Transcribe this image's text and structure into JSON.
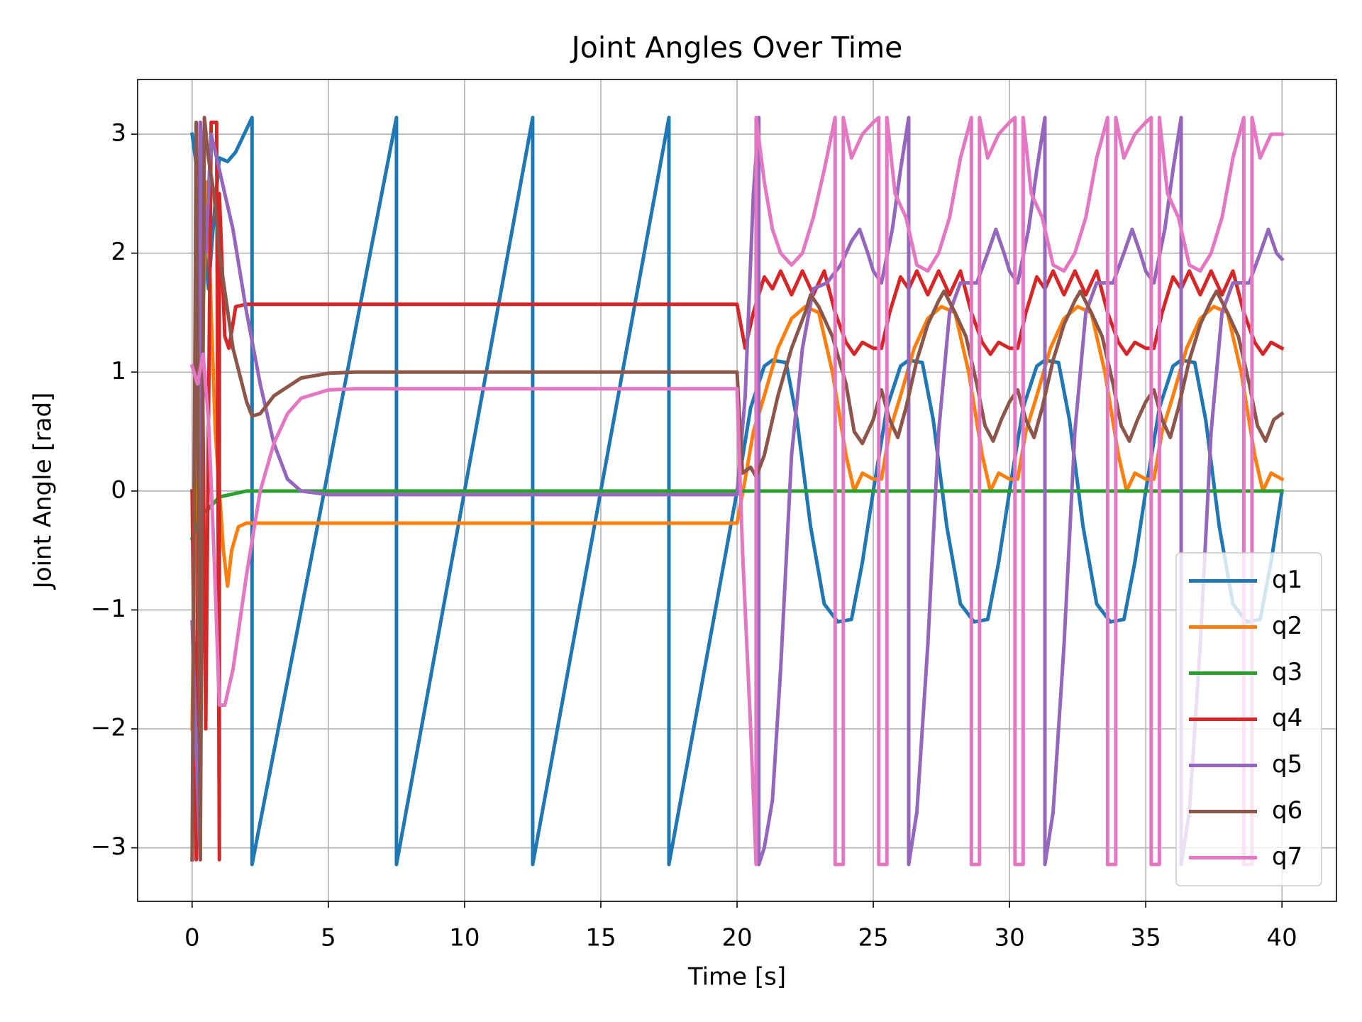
{
  "chart_data": {
    "type": "line",
    "title": "Joint Angles Over Time",
    "x_label": "Time [s]",
    "y_label": "Joint Angle [rad]",
    "xlim": [
      -2,
      42
    ],
    "ylim": [
      -3.45,
      3.46
    ],
    "xticks": [
      0,
      5,
      10,
      15,
      20,
      25,
      30,
      35,
      40
    ],
    "yticks": [
      {
        "value": -3,
        "label": "−3"
      },
      {
        "value": -2,
        "label": "−2"
      },
      {
        "value": -1,
        "label": "−1"
      },
      0,
      1,
      2,
      3
    ],
    "grid": true,
    "legend": "lower right",
    "series": [
      {
        "name": "q1",
        "color": "#1f77b4",
        "x": [
          0,
          0.3,
          0.6,
          0.8,
          1,
          1.3,
          1.6,
          2.2,
          2.2,
          7.5,
          7.5,
          12.5,
          12.5,
          17.5,
          17.5,
          20,
          20.5,
          21,
          21.3,
          21.8,
          22.2,
          22.7,
          23.2,
          23.7,
          24.2,
          24.6,
          25,
          25.5,
          26,
          26.3,
          26.8,
          27.2,
          27.7,
          28.2,
          28.7,
          29.2,
          29.6,
          30,
          30.5,
          31,
          31.3,
          31.8,
          32.2,
          32.7,
          33.2,
          33.7,
          34.2,
          34.6,
          35,
          35.5,
          36,
          36.3,
          36.8,
          37.2,
          37.7,
          38.2,
          38.7,
          39.2,
          39.6,
          40
        ],
        "values": [
          3,
          2.5,
          1.7,
          2.3,
          2.8,
          2.77,
          2.85,
          3.14,
          -3.14,
          3.14,
          -3.14,
          3.14,
          -3.14,
          3.14,
          -3.14,
          0,
          0.7,
          1.05,
          1.1,
          1.08,
          0.6,
          -0.3,
          -0.95,
          -1.1,
          -1.08,
          -0.6,
          0,
          0.7,
          1.05,
          1.1,
          1.08,
          0.6,
          -0.3,
          -0.95,
          -1.1,
          -1.08,
          -0.6,
          0,
          0.7,
          1.05,
          1.1,
          1.08,
          0.6,
          -0.3,
          -0.95,
          -1.1,
          -1.08,
          -0.6,
          0,
          0.7,
          1.05,
          1.1,
          1.08,
          0.6,
          -0.3,
          -0.95,
          -1.1,
          -1.08,
          -0.6,
          0
        ]
      },
      {
        "name": "q2",
        "color": "#ff7f0e",
        "x": [
          0,
          0.15,
          0.3,
          0.4,
          0.55,
          0.7,
          0.85,
          1,
          1.15,
          1.3,
          1.45,
          1.7,
          2,
          20,
          20.3,
          20.6,
          21,
          21.5,
          22,
          22.5,
          23,
          23.5,
          24,
          24.3,
          24.6,
          25,
          25.3,
          25.6,
          26,
          26.5,
          27,
          27.5,
          28,
          28.5,
          29,
          29.3,
          29.6,
          30,
          30.3,
          30.6,
          31,
          31.5,
          32,
          32.5,
          33,
          33.5,
          34,
          34.3,
          34.6,
          35,
          35.3,
          35.6,
          36,
          36.5,
          37,
          37.5,
          38,
          38.5,
          39,
          39.3,
          39.6,
          40
        ],
        "values": [
          -2,
          0.5,
          3.1,
          1.5,
          2.6,
          1.5,
          0.5,
          0,
          -0.5,
          -0.8,
          -0.5,
          -0.3,
          -0.27,
          -0.27,
          0.1,
          0.5,
          0.8,
          1.2,
          1.45,
          1.55,
          1.5,
          1,
          0.3,
          0,
          0.15,
          0.1,
          0.1,
          0.5,
          0.8,
          1.2,
          1.45,
          1.55,
          1.5,
          1,
          0.3,
          0,
          0.15,
          0.1,
          0.1,
          0.5,
          0.8,
          1.2,
          1.45,
          1.55,
          1.5,
          1,
          0.3,
          0,
          0.15,
          0.1,
          0.1,
          0.5,
          0.8,
          1.2,
          1.45,
          1.55,
          1.5,
          1,
          0.3,
          0,
          0.15,
          0.1
        ]
      },
      {
        "name": "q3",
        "color": "#2ca02c",
        "x": [
          0,
          0.3,
          0.6,
          1,
          2,
          40
        ],
        "values": [
          -0.4,
          -0.2,
          -0.15,
          -0.05,
          0,
          0
        ]
      },
      {
        "name": "q4",
        "color": "#d62728",
        "x": [
          0,
          0.15,
          0.3,
          0.5,
          0.7,
          0.9,
          1,
          1,
          1.2,
          1.35,
          1.6,
          2,
          20,
          20.3,
          20.6,
          21,
          21.3,
          21.6,
          22,
          22.4,
          22.8,
          23.2,
          23.6,
          24,
          24.3,
          24.6,
          25,
          25.3,
          25.6,
          26,
          26.3,
          26.6,
          27,
          27.4,
          27.8,
          28.2,
          28.6,
          29,
          29.3,
          29.6,
          30,
          30.3,
          30.6,
          31,
          31.3,
          31.6,
          32,
          32.4,
          32.8,
          33.2,
          33.6,
          34,
          34.3,
          34.6,
          35,
          35.3,
          35.6,
          36,
          36.3,
          36.6,
          37,
          37.4,
          37.8,
          38.2,
          38.6,
          39,
          39.3,
          39.6,
          40
        ],
        "values": [
          0,
          -3.1,
          3.1,
          -2,
          3.1,
          3.1,
          -3.1,
          2.5,
          1.3,
          1.2,
          1.55,
          1.57,
          1.57,
          1.2,
          1.5,
          1.8,
          1.7,
          1.85,
          1.65,
          1.85,
          1.65,
          1.85,
          1.5,
          1.25,
          1.15,
          1.25,
          1.2,
          1.2,
          1.5,
          1.8,
          1.7,
          1.85,
          1.65,
          1.85,
          1.65,
          1.85,
          1.5,
          1.25,
          1.15,
          1.25,
          1.2,
          1.2,
          1.5,
          1.8,
          1.7,
          1.85,
          1.65,
          1.85,
          1.65,
          1.85,
          1.5,
          1.25,
          1.15,
          1.25,
          1.2,
          1.2,
          1.5,
          1.8,
          1.7,
          1.85,
          1.65,
          1.85,
          1.65,
          1.85,
          1.5,
          1.25,
          1.15,
          1.25,
          1.2
        ]
      },
      {
        "name": "q5",
        "color": "#9467bd",
        "x": [
          0,
          0.2,
          0.3,
          0.3,
          0.5,
          0.7,
          0.9,
          1.2,
          1.5,
          2,
          2.5,
          3,
          3.5,
          4,
          5,
          20,
          20.3,
          20.6,
          20.8,
          20.8,
          21,
          21.3,
          21.6,
          22,
          22.4,
          22.8,
          23.3,
          23.8,
          24.2,
          24.5,
          24.8,
          25,
          25.3,
          25.7,
          26,
          26.3,
          26.3,
          26.6,
          27,
          27.4,
          27.8,
          28.2,
          28.8,
          29.2,
          29.5,
          29.8,
          30,
          30.3,
          30.7,
          31,
          31.3,
          31.3,
          31.6,
          32,
          32.4,
          32.8,
          33.2,
          33.8,
          34.2,
          34.5,
          34.8,
          35,
          35.3,
          35.7,
          36,
          36.3,
          36.3,
          36.6,
          37,
          37.4,
          37.8,
          38.2,
          38.8,
          39.2,
          39.5,
          39.8,
          40
        ],
        "values": [
          -1.1,
          -2.5,
          -3.1,
          3.1,
          2,
          3,
          2.8,
          2.5,
          2.2,
          1.5,
          0.9,
          0.4,
          0.1,
          0,
          -0.03,
          -0.03,
          0.8,
          2.5,
          3.14,
          -3.14,
          -3,
          -2.6,
          -1.5,
          0.3,
          1.2,
          1.7,
          1.75,
          1.9,
          2.1,
          2.2,
          2,
          1.85,
          1.75,
          2.2,
          2.7,
          3.14,
          -3.14,
          -2.7,
          -1.3,
          0.5,
          1.5,
          1.75,
          1.75,
          2,
          2.2,
          2,
          1.85,
          1.75,
          2.2,
          2.7,
          3.14,
          -3.14,
          -2.7,
          -1.3,
          0.5,
          1.5,
          1.75,
          1.75,
          2,
          2.2,
          2,
          1.85,
          1.75,
          2.2,
          2.7,
          3.14,
          -3.14,
          -2.7,
          -1.3,
          0.5,
          1.5,
          1.75,
          1.75,
          2,
          2.2,
          2,
          1.95
        ]
      },
      {
        "name": "q6",
        "color": "#8c564b",
        "x": [
          0,
          0.15,
          0.3,
          0.45,
          0.6,
          0.8,
          1,
          1.5,
          2,
          2.2,
          2.5,
          3,
          4,
          5,
          6,
          20,
          20.2,
          20.5,
          20.7,
          21,
          21.5,
          22,
          22.5,
          22.7,
          23,
          23.5,
          24,
          24.3,
          24.6,
          25,
          25.3,
          25.6,
          25.9,
          26.2,
          26.6,
          27,
          27.4,
          27.6,
          28,
          28.4,
          28.8,
          29.1,
          29.4,
          29.7,
          30,
          30.3,
          30.6,
          30.9,
          31.2,
          31.6,
          32,
          32.4,
          32.6,
          33,
          33.4,
          33.8,
          34.1,
          34.4,
          34.7,
          35,
          35.3,
          35.6,
          35.9,
          36.2,
          36.6,
          37,
          37.4,
          37.6,
          38,
          38.4,
          38.8,
          39.1,
          39.4,
          39.7,
          40
        ],
        "values": [
          -3.1,
          3.1,
          -3.1,
          3.14,
          2.8,
          2.5,
          2,
          1.2,
          0.75,
          0.63,
          0.65,
          0.8,
          0.95,
          0.99,
          1,
          1,
          0.15,
          0.2,
          0.12,
          0.3,
          0.8,
          1.2,
          1.5,
          1.65,
          1.55,
          1.3,
          0.9,
          0.5,
          0.4,
          0.6,
          0.85,
          0.6,
          0.45,
          0.7,
          1.1,
          1.4,
          1.6,
          1.68,
          1.5,
          1.3,
          0.9,
          0.55,
          0.42,
          0.6,
          0.75,
          0.85,
          0.6,
          0.45,
          0.7,
          1.1,
          1.4,
          1.6,
          1.68,
          1.5,
          1.3,
          0.9,
          0.55,
          0.42,
          0.6,
          0.75,
          0.85,
          0.6,
          0.45,
          0.7,
          1.1,
          1.4,
          1.6,
          1.68,
          1.5,
          1.3,
          0.9,
          0.55,
          0.42,
          0.6,
          0.65
        ]
      },
      {
        "name": "q7",
        "color": "#e377c2",
        "x": [
          0,
          0.2,
          0.4,
          0.6,
          0.8,
          1,
          1.2,
          1.5,
          2,
          2.5,
          3,
          3.5,
          4,
          5,
          6,
          20,
          20.2,
          20.5,
          20.7,
          20.7,
          21,
          21.3,
          21.6,
          22,
          22.4,
          22.8,
          23.2,
          23.6,
          23.6,
          23.9,
          23.9,
          24.2,
          24.6,
          25,
          25.2,
          25.2,
          25.5,
          25.5,
          25.8,
          26.2,
          26.6,
          27,
          27.4,
          27.8,
          28.2,
          28.6,
          28.6,
          28.9,
          28.9,
          29.2,
          29.6,
          30,
          30.2,
          30.2,
          30.5,
          30.5,
          30.8,
          31.2,
          31.6,
          32,
          32.4,
          32.8,
          33.2,
          33.6,
          33.6,
          33.9,
          33.9,
          34.2,
          34.6,
          35,
          35.2,
          35.2,
          35.5,
          35.5,
          35.8,
          36.2,
          36.6,
          37,
          37.4,
          37.8,
          38.2,
          38.6,
          38.6,
          38.9,
          38.9,
          39.2,
          39.6,
          40
        ],
        "values": [
          1.05,
          0.9,
          1.15,
          0.6,
          -0.5,
          -1.8,
          -1.8,
          -1.5,
          -0.7,
          0,
          0.4,
          0.65,
          0.78,
          0.85,
          0.86,
          0.86,
          -0.5,
          -2,
          -3.14,
          3.14,
          2.6,
          2.2,
          2,
          1.9,
          2,
          2.3,
          2.7,
          3.14,
          -3.14,
          -3.14,
          3.14,
          2.8,
          3,
          3.1,
          3.14,
          -3.14,
          -3.14,
          3.14,
          2.5,
          2.3,
          1.9,
          1.85,
          2,
          2.3,
          2.8,
          3.14,
          -3.14,
          -3.14,
          3.14,
          2.8,
          3,
          3.1,
          3.14,
          -3.14,
          -3.14,
          3.14,
          2.5,
          2.3,
          1.9,
          1.85,
          2,
          2.3,
          2.8,
          3.14,
          -3.14,
          -3.14,
          3.14,
          2.8,
          3,
          3.1,
          3.14,
          -3.14,
          -3.14,
          3.14,
          2.5,
          2.3,
          1.9,
          1.85,
          2,
          2.3,
          2.8,
          3.14,
          -3.14,
          -3.14,
          3.14,
          2.8,
          3,
          3
        ]
      }
    ]
  }
}
